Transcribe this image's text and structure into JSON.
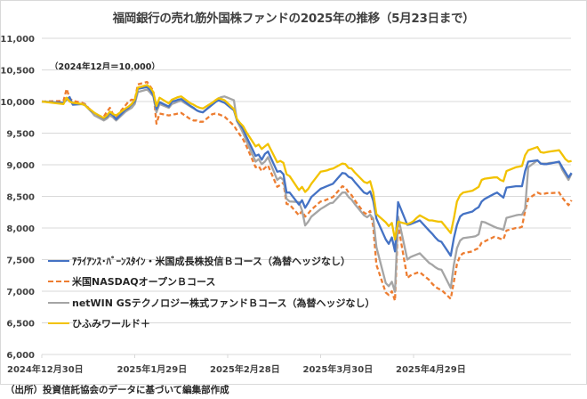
{
  "chart_data": {
    "type": "line",
    "title": "福岡銀行の売れ筋外国株ファンドの2025年の推移（5月23日まで）",
    "annotation": "（2024年12月＝10,000）",
    "source": "（出所）投資信託協会のデータに基づいて編集部作成",
    "xlabel": "",
    "ylabel": "",
    "ylim": [
      6000,
      11000
    ],
    "yticks": [
      6000,
      6500,
      7000,
      7500,
      8000,
      8500,
      9000,
      9500,
      10000,
      10500,
      11000
    ],
    "ytick_labels": [
      "6,000",
      "6,500",
      "7,000",
      "7,500",
      "8,000",
      "8,500",
      "9,000",
      "9,500",
      "10,000",
      "10,500",
      "11,000"
    ],
    "x_unit": "days since 2024-12-30",
    "xlim": [
      0,
      171
    ],
    "xticks": [
      0,
      30,
      60,
      90,
      120
    ],
    "xtick_labels": [
      "2024年12月30日",
      "2025年1月29日",
      "2025年2月28日",
      "2025年3月30日",
      "2025年4月29日"
    ],
    "grid": "horizontal",
    "legend_position": "bottom-left",
    "series": [
      {
        "name": "ｱﾗｲｱﾝｽ･ﾊﾞｰﾝｽﾀｲﾝ・米国成長株投信Ｂコース（為替ヘッジなし）",
        "color": "#4472c4",
        "style": "solid",
        "x": [
          0,
          7,
          8,
          9,
          10,
          13,
          14,
          15,
          16,
          17,
          20,
          21,
          22,
          23,
          24,
          27,
          28,
          29,
          30,
          31,
          34,
          35,
          36,
          37,
          38,
          41,
          42,
          43,
          44,
          45,
          48,
          49,
          50,
          51,
          52,
          55,
          56,
          57,
          58,
          59,
          62,
          63,
          64,
          65,
          66,
          69,
          70,
          71,
          72,
          73,
          76,
          77,
          78,
          79,
          80,
          83,
          84,
          85,
          86,
          87,
          90,
          91,
          92,
          93,
          94,
          97,
          98,
          99,
          100,
          101,
          104,
          105,
          106,
          107,
          108,
          111,
          112,
          113,
          114,
          115,
          118,
          119,
          120,
          121,
          122,
          125,
          126,
          127,
          128,
          129,
          132,
          133,
          134,
          135,
          136,
          139,
          140,
          141,
          142,
          143,
          146,
          147,
          148,
          149,
          150,
          153,
          154,
          155,
          156,
          157,
          160,
          161,
          162,
          163,
          164,
          167,
          168,
          169,
          170,
          171
        ],
        "values": [
          10000,
          9980,
          10030,
          10070,
          9950,
          9960,
          9940,
          9890,
          9850,
          9820,
          9730,
          9760,
          9820,
          9780,
          9720,
          9870,
          9900,
          9950,
          10000,
          10200,
          10230,
          10180,
          10100,
          9880,
          9990,
          9920,
          10000,
          10010,
          10030,
          10040,
          9930,
          9900,
          9860,
          9840,
          9830,
          9950,
          9990,
          10020,
          10000,
          9980,
          9860,
          9700,
          9640,
          9560,
          9450,
          9140,
          9160,
          9080,
          9170,
          9210,
          8890,
          8900,
          8850,
          8560,
          8560,
          8370,
          8440,
          8320,
          8400,
          8490,
          8620,
          8640,
          8660,
          8680,
          8700,
          8870,
          8860,
          8810,
          8790,
          8730,
          8560,
          8540,
          8580,
          8430,
          8150,
          7820,
          7750,
          7850,
          7630,
          8410,
          8050,
          8060,
          8080,
          8100,
          8120,
          7960,
          7910,
          7850,
          7800,
          7780,
          7560,
          7840,
          8050,
          8180,
          8220,
          8260,
          8300,
          8330,
          8420,
          8460,
          8540,
          8560,
          8520,
          8480,
          8640,
          8660,
          8660,
          8660,
          8900,
          9050,
          9070,
          9020,
          9010,
          9010,
          9020,
          9050,
          8960,
          8880,
          8800,
          8870
        ]
      },
      {
        "name": "米国NASDAQオープンＢコース",
        "color": "#ed7d31",
        "style": "dashed",
        "x": [
          0,
          7,
          8,
          9,
          10,
          13,
          14,
          15,
          16,
          17,
          20,
          21,
          22,
          23,
          24,
          27,
          28,
          29,
          30,
          31,
          34,
          35,
          36,
          37,
          38,
          41,
          42,
          43,
          44,
          45,
          48,
          49,
          50,
          51,
          52,
          55,
          56,
          57,
          58,
          59,
          62,
          63,
          64,
          65,
          66,
          69,
          70,
          71,
          72,
          73,
          76,
          77,
          78,
          79,
          80,
          83,
          84,
          85,
          86,
          87,
          90,
          91,
          92,
          93,
          94,
          97,
          98,
          99,
          100,
          101,
          104,
          105,
          106,
          107,
          108,
          111,
          112,
          113,
          114,
          115,
          118,
          119,
          120,
          121,
          122,
          125,
          126,
          127,
          128,
          129,
          132,
          133,
          134,
          135,
          136,
          139,
          140,
          141,
          142,
          143,
          146,
          147,
          148,
          149,
          150,
          153,
          154,
          155,
          156,
          157,
          160,
          161,
          162,
          163,
          164,
          167,
          168,
          169,
          170,
          171
        ],
        "values": [
          10000,
          10010,
          10200,
          10050,
          10010,
          9980,
          9960,
          9900,
          9860,
          9780,
          9760,
          9840,
          9900,
          9800,
          9760,
          9940,
          10000,
          10030,
          10020,
          10270,
          10310,
          10240,
          10170,
          9650,
          9810,
          9780,
          9790,
          9800,
          9810,
          9820,
          9720,
          9700,
          9700,
          9680,
          9680,
          9800,
          9810,
          9800,
          9780,
          9760,
          9620,
          9540,
          9470,
          9400,
          9300,
          8960,
          8980,
          8900,
          8950,
          8990,
          8650,
          8680,
          8720,
          8380,
          8370,
          8200,
          8270,
          8180,
          8230,
          8290,
          8420,
          8430,
          8450,
          8470,
          8490,
          8660,
          8640,
          8560,
          8520,
          8440,
          8240,
          8220,
          8270,
          8020,
          7420,
          6980,
          6940,
          7000,
          6850,
          8050,
          7210,
          7250,
          7270,
          7290,
          7300,
          7180,
          7120,
          7070,
          7040,
          7020,
          6880,
          7150,
          7430,
          7560,
          7600,
          7630,
          7660,
          7680,
          7770,
          7790,
          7860,
          7850,
          7830,
          7820,
          7960,
          8000,
          8000,
          8020,
          8270,
          8460,
          8560,
          8540,
          8540,
          8550,
          8550,
          8560,
          8480,
          8420,
          8360,
          8440
        ]
      },
      {
        "name": "netWIN GSテクノロジー株式ファンドＢコース（為替ヘッジなし）",
        "color": "#a5a5a5",
        "style": "solid",
        "x": [
          0,
          7,
          8,
          9,
          10,
          13,
          14,
          15,
          16,
          17,
          20,
          21,
          22,
          23,
          24,
          27,
          28,
          29,
          30,
          31,
          34,
          35,
          36,
          37,
          38,
          41,
          42,
          43,
          44,
          45,
          48,
          49,
          50,
          51,
          52,
          55,
          56,
          57,
          58,
          59,
          62,
          63,
          64,
          65,
          66,
          69,
          70,
          71,
          72,
          73,
          76,
          77,
          78,
          79,
          80,
          83,
          84,
          85,
          86,
          87,
          90,
          91,
          92,
          93,
          94,
          97,
          98,
          99,
          100,
          101,
          104,
          105,
          106,
          107,
          108,
          111,
          112,
          113,
          114,
          115,
          118,
          119,
          120,
          121,
          122,
          125,
          126,
          127,
          128,
          129,
          132,
          133,
          134,
          135,
          136,
          139,
          140,
          141,
          142,
          143,
          146,
          147,
          148,
          149,
          150,
          153,
          154,
          155,
          156,
          157,
          160,
          161,
          162,
          163,
          164,
          167,
          168,
          169,
          170,
          171
        ],
        "values": [
          10000,
          9970,
          10050,
          10020,
          9960,
          9960,
          9950,
          9890,
          9840,
          9780,
          9700,
          9730,
          9780,
          9750,
          9700,
          9840,
          9870,
          9900,
          9960,
          10150,
          10190,
          10140,
          10080,
          9830,
          9960,
          9900,
          9960,
          9980,
          10000,
          10010,
          9920,
          9890,
          9860,
          9840,
          9830,
          9960,
          10010,
          10050,
          10070,
          10080,
          10020,
          9690,
          9600,
          9500,
          9380,
          9050,
          9090,
          9010,
          9050,
          9120,
          8760,
          8800,
          8760,
          8460,
          8420,
          8410,
          8280,
          8040,
          8100,
          8180,
          8300,
          8330,
          8360,
          8390,
          8400,
          8560,
          8560,
          8490,
          8450,
          8380,
          8200,
          8170,
          8210,
          8150,
          7700,
          7130,
          7080,
          7150,
          6990,
          8180,
          7500,
          7540,
          7560,
          7580,
          7600,
          7450,
          7420,
          7380,
          7350,
          7340,
          7050,
          7420,
          7680,
          7800,
          7840,
          7860,
          7870,
          7900,
          8100,
          8090,
          8020,
          8000,
          7990,
          7970,
          8160,
          8200,
          8210,
          8210,
          8300,
          8960,
          9070,
          9020,
          9020,
          9020,
          9030,
          9040,
          8920,
          8840,
          8760,
          8860
        ]
      },
      {
        "name": "ひふみワールド＋",
        "color": "#f2c200",
        "style": "solid",
        "x": [
          0,
          7,
          8,
          9,
          10,
          13,
          14,
          15,
          16,
          17,
          20,
          21,
          22,
          23,
          24,
          27,
          28,
          29,
          30,
          31,
          34,
          35,
          36,
          37,
          38,
          41,
          42,
          43,
          44,
          45,
          48,
          49,
          50,
          51,
          52,
          55,
          56,
          57,
          58,
          59,
          62,
          63,
          64,
          65,
          66,
          69,
          70,
          71,
          72,
          73,
          76,
          77,
          78,
          79,
          80,
          83,
          84,
          85,
          86,
          87,
          90,
          91,
          92,
          93,
          94,
          97,
          98,
          99,
          100,
          101,
          104,
          105,
          106,
          107,
          108,
          111,
          112,
          113,
          114,
          115,
          118,
          119,
          120,
          121,
          122,
          125,
          126,
          127,
          128,
          129,
          132,
          133,
          134,
          135,
          136,
          139,
          140,
          141,
          142,
          143,
          146,
          147,
          148,
          149,
          150,
          153,
          154,
          155,
          156,
          157,
          160,
          161,
          162,
          163,
          164,
          167,
          168,
          169,
          170,
          171
        ],
        "values": [
          10000,
          9960,
          10060,
          10000,
          9980,
          9960,
          9940,
          9890,
          9860,
          9820,
          9740,
          9780,
          9840,
          9800,
          9780,
          9890,
          9920,
          9960,
          10030,
          10220,
          10260,
          10220,
          10150,
          9930,
          10060,
          9970,
          10030,
          10050,
          10070,
          10080,
          9970,
          9950,
          9920,
          9900,
          9890,
          9980,
          10020,
          10050,
          10040,
          10020,
          9880,
          9720,
          9660,
          9610,
          9520,
          9290,
          9320,
          9250,
          9290,
          9330,
          9040,
          9060,
          9030,
          8850,
          8820,
          8600,
          8650,
          8570,
          8620,
          8700,
          8890,
          8900,
          8910,
          8930,
          8940,
          9020,
          9010,
          8950,
          8940,
          8880,
          8730,
          8710,
          8740,
          8560,
          8220,
          8090,
          8030,
          8080,
          7820,
          8100,
          8060,
          8080,
          8110,
          8160,
          8200,
          8120,
          8120,
          8110,
          8100,
          8100,
          7920,
          8150,
          8420,
          8520,
          8560,
          8590,
          8620,
          8650,
          8760,
          8780,
          8800,
          8800,
          8760,
          8740,
          8900,
          8960,
          8970,
          8980,
          9150,
          9230,
          9280,
          9200,
          9190,
          9200,
          9210,
          9230,
          9160,
          9090,
          9050,
          9060
        ]
      }
    ]
  }
}
